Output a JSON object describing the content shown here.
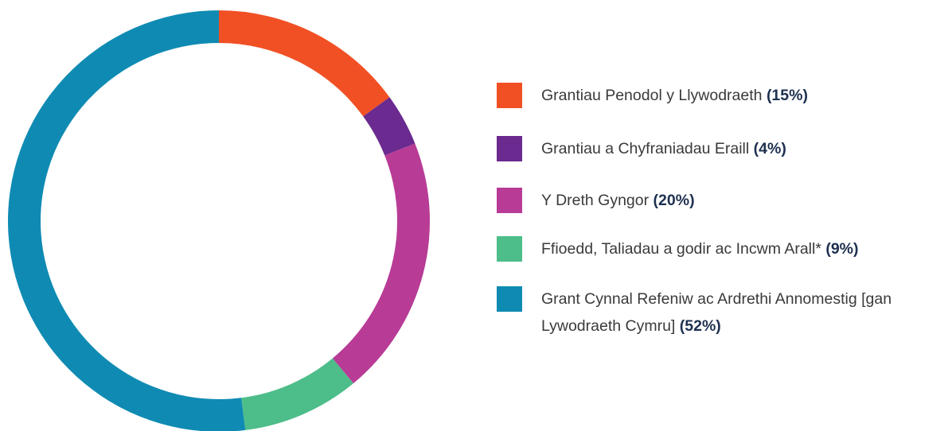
{
  "chart_data": {
    "type": "donut",
    "categories": [
      "Grantiau Penodol y Llywodraeth",
      "Grantiau a Chyfraniadau Eraill",
      "Y Dreth Gyngor",
      "Ffioedd, Taliadau a godir ac Incwm Arall*",
      "Grant Cynnal Refeniw ac Ardrethi Annomestig [gan Lywodraeth Cymru]"
    ],
    "values": [
      15,
      4,
      20,
      9,
      52
    ],
    "value_labels": [
      "(15%)",
      "(4%)",
      "(20%)",
      "(9%)",
      "(52%)"
    ],
    "colors": [
      "#f15025",
      "#6b2a8f",
      "#b83b96",
      "#4dbd8a",
      "#0f8bb3"
    ],
    "legend": "right"
  }
}
